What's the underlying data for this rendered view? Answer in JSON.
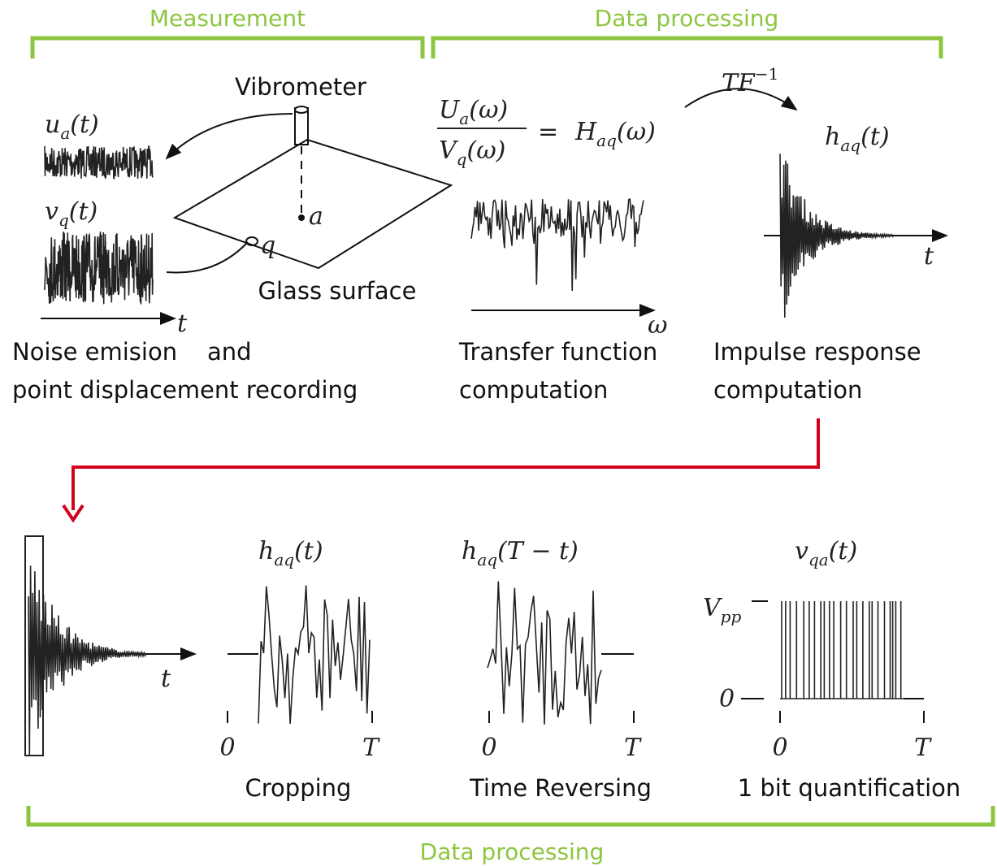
{
  "header": {
    "measurement": "Measurement",
    "processing": "Data processing"
  },
  "measurement": {
    "vibrometer": "Vibrometer",
    "surface": "Glass surface",
    "point_a": "a",
    "point_q": "q",
    "time_axis": "t",
    "signal_u": {
      "symbol": "u",
      "sub": "a",
      "arg": "(t)"
    },
    "signal_v": {
      "symbol": "v",
      "sub": "q",
      "arg": "(t)"
    },
    "caption": [
      "Noise emision    and",
      "point displacement recording"
    ]
  },
  "transfer": {
    "num": {
      "symbol": "U",
      "sub": "a",
      "arg": "(ω)"
    },
    "den": {
      "symbol": "V",
      "sub": "q",
      "arg": "(ω)"
    },
    "equals": "=",
    "result": {
      "symbol": "H",
      "sub": "aq",
      "arg": "(ω)"
    },
    "freq_axis": "ω",
    "caption": [
      "Transfer function",
      "computation"
    ]
  },
  "inverse": {
    "operator": "TF",
    "exponent": "−1"
  },
  "impulse": {
    "signal": {
      "symbol": "h",
      "sub": "aq",
      "arg": "(t)"
    },
    "time_axis": "t",
    "caption": [
      "Impulse response",
      "computation"
    ]
  },
  "steps": [
    {
      "time_axis": "t"
    },
    {
      "signal": {
        "symbol": "h",
        "sub": "aq",
        "arg": "(t)"
      },
      "start": "0",
      "end": "T",
      "caption": "Cropping"
    },
    {
      "signal": {
        "symbol": "h",
        "sub": "aq",
        "arg": "(T − t)"
      },
      "start": "0",
      "end": "T",
      "caption": "Time Reversing"
    },
    {
      "signal": {
        "symbol": "v",
        "sub": "qa",
        "arg": "(t)"
      },
      "high": {
        "symbol": "V",
        "sub": "pp"
      },
      "low": "0",
      "start": "0",
      "end": "T",
      "caption": "1 bit quantification"
    }
  ],
  "footer": "Data processing"
}
